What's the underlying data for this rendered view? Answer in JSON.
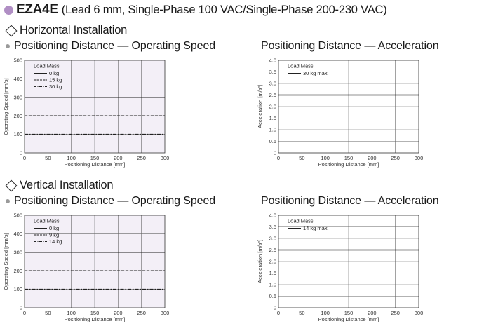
{
  "header": {
    "model": "EZA4E",
    "subtitle": "(Lead 6 mm, Single-Phase 100 VAC/Single-Phase 200-230 VAC)",
    "accent_color": "#b08ec4"
  },
  "sections": [
    {
      "title": "Horizontal Installation",
      "left_title": "Positioning Distance — Operating Speed",
      "right_title": "Positioning Distance — Acceleration"
    },
    {
      "title": "Vertical Installation",
      "left_title": "Positioning Distance — Operating Speed",
      "right_title": "Positioning Distance — Acceleration"
    }
  ],
  "chart_data": [
    {
      "id": "h_speed",
      "type": "line",
      "xlabel": "Positioning Distance [mm]",
      "ylabel": "Operating Speed [mm/s]",
      "xlim": [
        0,
        300
      ],
      "ylim": [
        0,
        500
      ],
      "xticks": [
        0,
        50,
        100,
        150,
        200,
        250,
        300
      ],
      "yticks": [
        0,
        100,
        200,
        300,
        400,
        500
      ],
      "ytick_labels": [
        "0",
        "100",
        "200",
        "300",
        "400",
        "500"
      ],
      "grid": true,
      "background": "#f3eff7",
      "legend_title": "Load Mass",
      "series": [
        {
          "name": "0 kg",
          "style": "solid",
          "x": [
            0,
            300
          ],
          "y": [
            300,
            300
          ]
        },
        {
          "name": "15 kg",
          "style": "dashed",
          "x": [
            0,
            300
          ],
          "y": [
            200,
            200
          ]
        },
        {
          "name": "30 kg",
          "style": "dashdot",
          "x": [
            0,
            300
          ],
          "y": [
            100,
            100
          ]
        }
      ]
    },
    {
      "id": "h_accel",
      "type": "line",
      "xlabel": "Positioning Distance [mm]",
      "ylabel": "Acceleration [m/s²]",
      "xlim": [
        0,
        300
      ],
      "ylim": [
        0,
        4.0
      ],
      "xticks": [
        0,
        50,
        100,
        150,
        200,
        250,
        300
      ],
      "yticks": [
        0,
        0.5,
        1.0,
        1.5,
        2.0,
        2.5,
        3.0,
        3.5,
        4.0
      ],
      "ytick_labels": [
        "0",
        "0.5",
        "1.0",
        "1.5",
        "2.0",
        "2.5",
        "3.0",
        "3.5",
        "4.0"
      ],
      "grid": true,
      "background": "#ffffff",
      "legend_title": "Load Mass",
      "series": [
        {
          "name": "30 kg max.",
          "style": "solid",
          "x": [
            0,
            300
          ],
          "y": [
            2.5,
            2.5
          ]
        }
      ]
    },
    {
      "id": "v_speed",
      "type": "line",
      "xlabel": "Positioning Distance [mm]",
      "ylabel": "Operating Speed [mm/s]",
      "xlim": [
        0,
        300
      ],
      "ylim": [
        0,
        500
      ],
      "xticks": [
        0,
        50,
        100,
        150,
        200,
        250,
        300
      ],
      "yticks": [
        0,
        100,
        200,
        300,
        400,
        500
      ],
      "ytick_labels": [
        "0",
        "100",
        "200",
        "300",
        "400",
        "500"
      ],
      "grid": true,
      "background": "#f3eff7",
      "legend_title": "Load Mass",
      "series": [
        {
          "name": "0 kg",
          "style": "solid",
          "x": [
            0,
            300
          ],
          "y": [
            300,
            300
          ]
        },
        {
          "name": "9 kg",
          "style": "dashed",
          "x": [
            0,
            300
          ],
          "y": [
            200,
            200
          ]
        },
        {
          "name": "14 kg",
          "style": "dashdot",
          "x": [
            0,
            300
          ],
          "y": [
            100,
            100
          ]
        }
      ]
    },
    {
      "id": "v_accel",
      "type": "line",
      "xlabel": "Positioning Distance [mm]",
      "ylabel": "Acceleration [m/s²]",
      "xlim": [
        0,
        300
      ],
      "ylim": [
        0,
        4.0
      ],
      "xticks": [
        0,
        50,
        100,
        150,
        200,
        250,
        300
      ],
      "yticks": [
        0,
        0.5,
        1.0,
        1.5,
        2.0,
        2.5,
        3.0,
        3.5,
        4.0
      ],
      "ytick_labels": [
        "0",
        "0.5",
        "1.0",
        "1.5",
        "2.0",
        "2.5",
        "3.0",
        "3.5",
        "4.0"
      ],
      "grid": true,
      "background": "#ffffff",
      "legend_title": "Load Mass",
      "series": [
        {
          "name": "14 kg max.",
          "style": "solid",
          "x": [
            0,
            300
          ],
          "y": [
            2.5,
            2.5
          ]
        }
      ]
    }
  ]
}
